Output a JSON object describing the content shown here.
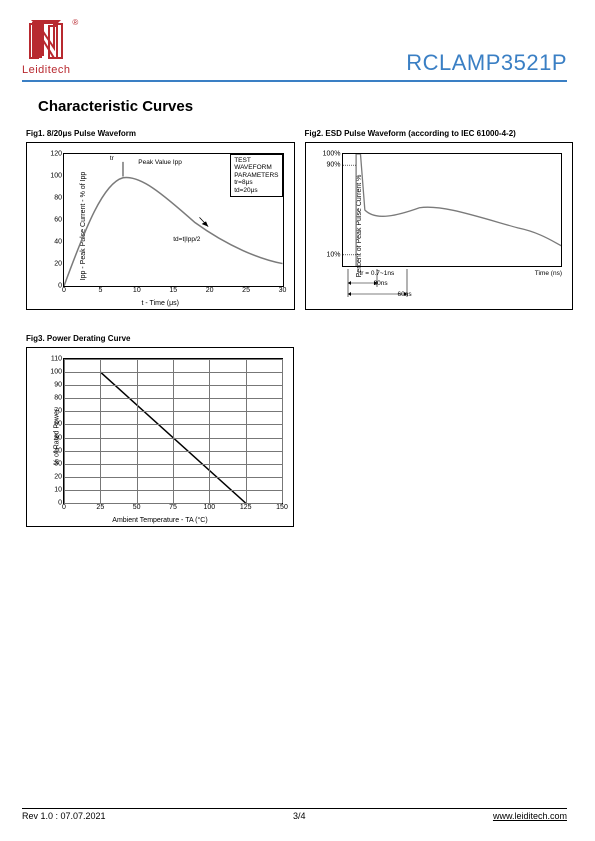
{
  "header": {
    "brand": "Leiditech",
    "reg": "®",
    "part_number": "RCLAMP3521P"
  },
  "page_title": "Characteristic Curves",
  "fig1": {
    "caption": "Fig1.   8/20μs Pulse Waveform",
    "ylabel": "Ipp - Peak Pulse Current - % of Ipp",
    "xlabel": "t - Time (μs)",
    "yticks": [
      "0",
      "20",
      "40",
      "60",
      "80",
      "100",
      "120"
    ],
    "xticks": [
      "0",
      "5",
      "10",
      "15",
      "20",
      "25",
      "30"
    ],
    "peak_label": "Peak Value Ipp",
    "tr_label": "tr",
    "half_label": "td=t|Ipp/2",
    "param_box": {
      "l1": "TEST",
      "l2": "WAVEFORM",
      "l3": "PARAMETERS",
      "l4": "tr=8μs",
      "l5": "td=20μs"
    },
    "curve_color": "#7a7a7a",
    "grid_color": "#f0f0f0"
  },
  "fig2": {
    "caption": "Fig2. ESD Pulse Waveform (according to IEC 61000-4-2)",
    "ylabel": "Percent of Peak Pulse Current %",
    "xlabel": "Time (ns)",
    "yticks": [
      "10%",
      "90%",
      "100%"
    ],
    "tr_text": "tr = 0.7~1ns",
    "t30": "30ns",
    "t60": "60ns",
    "curve_color": "#7a7a7a"
  },
  "fig3": {
    "caption": "Fig3.   Power Derating Curve",
    "ylabel": "% of Rated Power",
    "xlabel": "Ambient Temperature - TA (°C)",
    "yticks": [
      "0",
      "10",
      "20",
      "30",
      "40",
      "50",
      "60",
      "70",
      "80",
      "90",
      "100",
      "110"
    ],
    "xticks": [
      "0",
      "25",
      "50",
      "75",
      "100",
      "125",
      "150"
    ],
    "curve_color": "#000",
    "grid_color": "#777"
  },
  "footer": {
    "rev": "Rev 1.0 : 07.07.2021",
    "page": "3/4",
    "url": "www.leiditech.com"
  }
}
